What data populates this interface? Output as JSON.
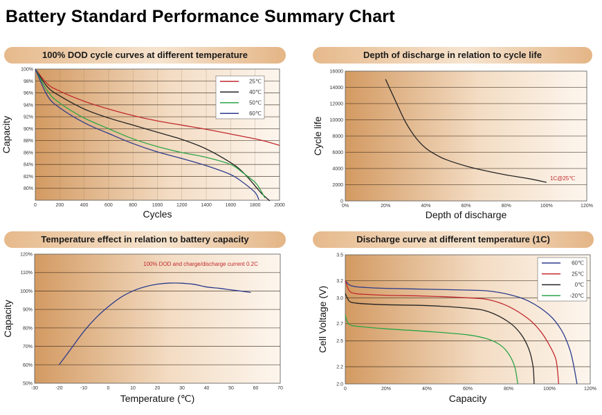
{
  "page": {
    "title": "Battery Standard Performance Summary Chart"
  },
  "chart_data": [
    {
      "id": "dod-cycle",
      "type": "line",
      "title": "100% DOD cycle curves at different temperature",
      "xlabel": "Cycles",
      "ylabel": "Capacity",
      "xlim": [
        0,
        2000
      ],
      "ylim": [
        78,
        100
      ],
      "xticks": [
        "0",
        "200",
        "400",
        "600",
        "800",
        "1000",
        "1200",
        "1400",
        "1600",
        "1800",
        "2000"
      ],
      "yticks": [
        "100%",
        "98%",
        "96%",
        "94%",
        "92%",
        "90%",
        "88%",
        "86%",
        "84%",
        "82%",
        "80%"
      ],
      "grid": true,
      "legend_position": "top-right",
      "series": [
        {
          "name": "25℃",
          "color": "#c0282d",
          "points": [
            [
              0,
              100
            ],
            [
              100,
              97.5
            ],
            [
              200,
              96.3
            ],
            [
              400,
              94.6
            ],
            [
              600,
              93.3
            ],
            [
              800,
              92.2
            ],
            [
              1000,
              91.3
            ],
            [
              1200,
              90.6
            ],
            [
              1400,
              89.9
            ],
            [
              1600,
              89.1
            ],
            [
              1800,
              88.3
            ],
            [
              1900,
              87.8
            ],
            [
              2000,
              87.2
            ]
          ]
        },
        {
          "name": "40℃",
          "color": "#222222",
          "points": [
            [
              0,
              100
            ],
            [
              100,
              97
            ],
            [
              200,
              95.5
            ],
            [
              400,
              93.3
            ],
            [
              600,
              91.8
            ],
            [
              800,
              90.6
            ],
            [
              1000,
              89.4
            ],
            [
              1200,
              88.2
            ],
            [
              1400,
              86.6
            ],
            [
              1600,
              84.3
            ],
            [
              1700,
              82.7
            ],
            [
              1800,
              80.4
            ],
            [
              1850,
              79.2
            ],
            [
              1920,
              77.9
            ]
          ]
        },
        {
          "name": "50℃",
          "color": "#2aa447",
          "points": [
            [
              0,
              100
            ],
            [
              100,
              96.3
            ],
            [
              200,
              94.3
            ],
            [
              400,
              91.8
            ],
            [
              600,
              90
            ],
            [
              800,
              88.3
            ],
            [
              1000,
              87
            ],
            [
              1200,
              86
            ],
            [
              1400,
              85.2
            ],
            [
              1600,
              84
            ],
            [
              1700,
              82.6
            ],
            [
              1800,
              81
            ],
            [
              1850,
              79.5
            ],
            [
              1880,
              78.4
            ]
          ]
        },
        {
          "name": "60℃",
          "color": "#2a3a8c",
          "points": [
            [
              0,
              100
            ],
            [
              100,
              95.5
            ],
            [
              200,
              93.5
            ],
            [
              400,
              91
            ],
            [
              600,
              89.2
            ],
            [
              800,
              87.5
            ],
            [
              1000,
              86.1
            ],
            [
              1200,
              85
            ],
            [
              1400,
              83.8
            ],
            [
              1600,
              82.3
            ],
            [
              1700,
              81
            ],
            [
              1800,
              79.3
            ],
            [
              1830,
              78.1
            ]
          ]
        }
      ]
    },
    {
      "id": "dod-cycle-life",
      "type": "line",
      "title": "Depth of discharge in relation to cycle life",
      "xlabel": "Depth of discharge",
      "ylabel": "Cycle life",
      "xlim": [
        0,
        120
      ],
      "ylim": [
        0,
        16000
      ],
      "xticks": [
        "0%",
        "20%",
        "40%",
        "60%",
        "80%",
        "100%",
        "120%"
      ],
      "yticks": [
        "16000",
        "14000",
        "12000",
        "10000",
        "8000",
        "6000",
        "4000",
        "2000",
        "0"
      ],
      "grid": true,
      "annotation": "1C@25℃",
      "series": [
        {
          "color": "#222222",
          "points": [
            [
              20,
              15000
            ],
            [
              25,
              12300
            ],
            [
              30,
              9700
            ],
            [
              35,
              7800
            ],
            [
              40,
              6500
            ],
            [
              45,
              5700
            ],
            [
              50,
              5100
            ],
            [
              60,
              4300
            ],
            [
              70,
              3700
            ],
            [
              80,
              3200
            ],
            [
              90,
              2800
            ],
            [
              100,
              2300
            ]
          ]
        }
      ]
    },
    {
      "id": "temp-capacity",
      "type": "line",
      "title": "Temperature effect in relation to battery capacity",
      "xlabel": "Temperature (℃)",
      "ylabel": "Capacity",
      "xlim": [
        -30,
        70
      ],
      "ylim": [
        50,
        120
      ],
      "xticks": [
        "-30",
        "-20",
        "-10",
        "0",
        "10",
        "20",
        "30",
        "40",
        "50",
        "60",
        "70"
      ],
      "yticks": [
        "120%",
        "110%",
        "100%",
        "90%",
        "80%",
        "70%",
        "60%",
        "50%"
      ],
      "grid": true,
      "annotation": "100% DOD and charge/discharge current 0.2C",
      "series": [
        {
          "color": "#2a3a8c",
          "points": [
            [
              -20,
              60
            ],
            [
              -15,
              69
            ],
            [
              -10,
              78
            ],
            [
              -5,
              85.5
            ],
            [
              0,
              91.5
            ],
            [
              5,
              96.5
            ],
            [
              10,
              100
            ],
            [
              15,
              102.3
            ],
            [
              20,
              103.7
            ],
            [
              25,
              104.3
            ],
            [
              30,
              104.2
            ],
            [
              35,
              103.6
            ],
            [
              40,
              102.2
            ],
            [
              45,
              101.5
            ],
            [
              50,
              100.6
            ],
            [
              55,
              99.8
            ],
            [
              58,
              99.2
            ]
          ]
        }
      ]
    },
    {
      "id": "discharge-temp",
      "type": "line",
      "title": "Discharge curve at different temperature (1C)",
      "xlabel": "Capacity",
      "ylabel": "Cell Voltage (V)",
      "xlim": [
        0,
        120
      ],
      "ylim": [
        2.0,
        3.5
      ],
      "xticks": [
        "0",
        "20%",
        "40%",
        "60%",
        "80%",
        "100%",
        "120%"
      ],
      "yticks": [
        "3.5",
        "3.2",
        "3.0",
        "2.7",
        "2.5",
        "2.2",
        "2.0"
      ],
      "grid": true,
      "legend_position": "top-right",
      "series": [
        {
          "name": "60℃",
          "color": "#2a3a8c",
          "points": [
            [
              0,
              3.2
            ],
            [
              2,
              3.15
            ],
            [
              5,
              3.13
            ],
            [
              10,
              3.12
            ],
            [
              20,
              3.11
            ],
            [
              40,
              3.1
            ],
            [
              60,
              3.09
            ],
            [
              70,
              3.08
            ],
            [
              80,
              3.04
            ],
            [
              90,
              2.96
            ],
            [
              100,
              2.8
            ],
            [
              106,
              2.62
            ],
            [
              110,
              2.4
            ],
            [
              112,
              2.2
            ],
            [
              113.5,
              2.0
            ]
          ]
        },
        {
          "name": "25℃",
          "color": "#c0282d",
          "points": [
            [
              0,
              3.2
            ],
            [
              2,
              3.08
            ],
            [
              5,
              3.05
            ],
            [
              10,
              3.04
            ],
            [
              20,
              3.03
            ],
            [
              40,
              3.02
            ],
            [
              60,
              3.0
            ],
            [
              70,
              2.98
            ],
            [
              80,
              2.9
            ],
            [
              90,
              2.75
            ],
            [
              96,
              2.6
            ],
            [
              100,
              2.45
            ],
            [
              103,
              2.3
            ],
            [
              104,
              2.15
            ],
            [
              104.5,
              2.0
            ]
          ]
        },
        {
          "name": "0℃",
          "color": "#222222",
          "points": [
            [
              0,
              3.05
            ],
            [
              2,
              2.96
            ],
            [
              5,
              2.94
            ],
            [
              10,
              2.93
            ],
            [
              20,
              2.92
            ],
            [
              40,
              2.91
            ],
            [
              60,
              2.88
            ],
            [
              70,
              2.84
            ],
            [
              80,
              2.72
            ],
            [
              86,
              2.58
            ],
            [
              90,
              2.4
            ],
            [
              92,
              2.2
            ],
            [
              92.5,
              2.0
            ]
          ]
        },
        {
          "name": "-20℃",
          "color": "#2aa447",
          "points": [
            [
              0,
              2.8
            ],
            [
              1,
              2.72
            ],
            [
              3,
              2.68
            ],
            [
              10,
              2.66
            ],
            [
              20,
              2.64
            ],
            [
              40,
              2.61
            ],
            [
              60,
              2.57
            ],
            [
              70,
              2.52
            ],
            [
              76,
              2.45
            ],
            [
              80,
              2.35
            ],
            [
              83,
              2.2
            ],
            [
              84.5,
              2.0
            ]
          ]
        }
      ]
    }
  ]
}
